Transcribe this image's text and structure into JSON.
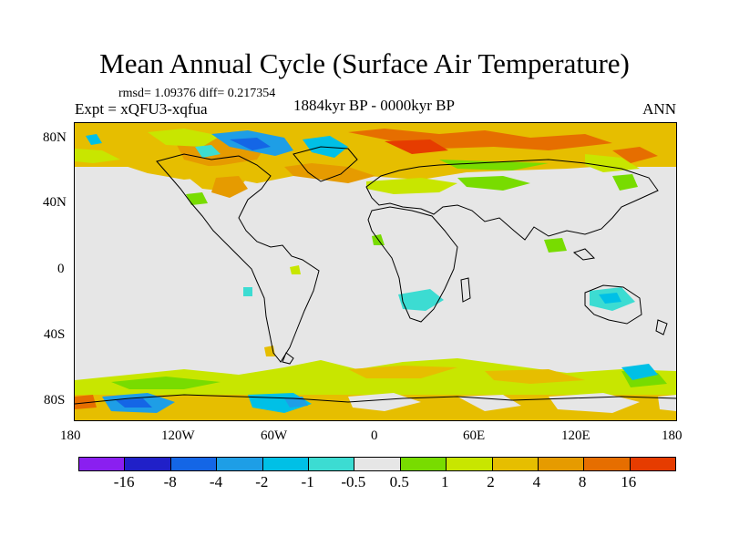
{
  "header": {
    "title": "Mean Annual Cycle (Surface Air Temperature)",
    "stats": "rmsd= 1.09376 diff= 0.217354",
    "experiment": "Expt = xQFU3-xqfua",
    "period": "1884kyr BP - 0000kyr BP",
    "season": "ANN"
  },
  "map": {
    "x_axis_labels": [
      "180",
      "120W",
      "60W",
      "0",
      "60E",
      "120E",
      "180"
    ],
    "y_axis_labels": [
      "80N",
      "40N",
      "0",
      "40S",
      "80S"
    ]
  },
  "colorbar": {
    "colors": [
      "#8a1ff0",
      "#2020c8",
      "#1466e6",
      "#1e9ee6",
      "#00c0e6",
      "#3cdcd2",
      "#e6e6e6",
      "#78dc00",
      "#c8e600",
      "#e6be00",
      "#e69b00",
      "#e66e00",
      "#e63c00"
    ],
    "labels": [
      "-16",
      "-8",
      "-4",
      "-2",
      "-1",
      "-0.5",
      "0.5",
      "1",
      "2",
      "4",
      "8",
      "16"
    ]
  }
}
